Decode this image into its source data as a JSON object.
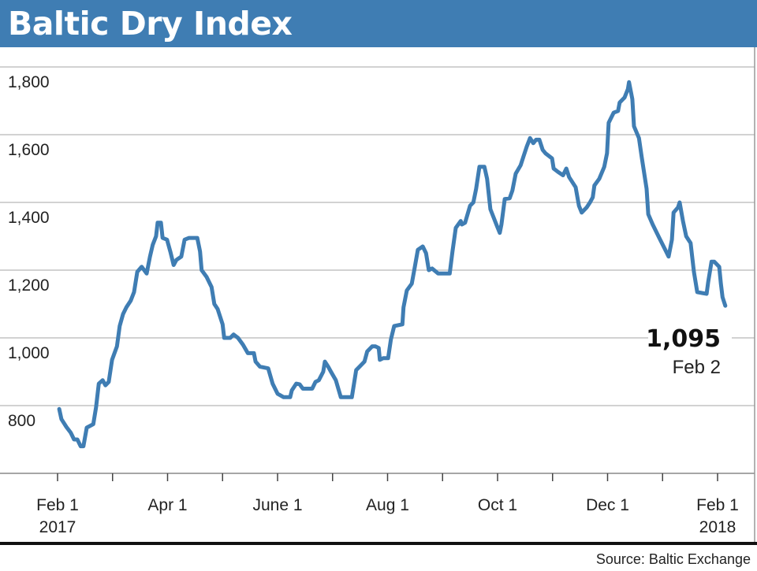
{
  "chart_data": {
    "type": "line",
    "title": "Baltic Dry Index",
    "xlabel": "",
    "ylabel": "",
    "x_unit": "months since Feb 1 2017",
    "ylim": [
      600,
      1800
    ],
    "y_ticks": [
      800,
      1000,
      1200,
      1400,
      1600,
      1800
    ],
    "y_tick_labels": [
      "800",
      "1,000",
      "1,200",
      "1,400",
      "1,600",
      "1,800"
    ],
    "x_ticks": [
      0,
      1,
      2,
      3,
      4,
      5,
      6,
      7,
      8,
      9,
      10,
      11,
      12
    ],
    "x_tick_labels": [
      {
        "at": 0,
        "label": "Feb 1",
        "year": "2017"
      },
      {
        "at": 2,
        "label": "Apr 1",
        "year": ""
      },
      {
        "at": 4,
        "label": "June 1",
        "year": ""
      },
      {
        "at": 6,
        "label": "Aug 1",
        "year": ""
      },
      {
        "at": 8,
        "label": "Oct 1",
        "year": ""
      },
      {
        "at": 10,
        "label": "Dec 1",
        "year": ""
      },
      {
        "at": 12,
        "label": "Feb 1",
        "year": "2018"
      }
    ],
    "grid": true,
    "series": [
      {
        "name": "Baltic Dry Index",
        "color": "#3f7db3",
        "x": [
          0.03,
          0.07,
          0.16,
          0.24,
          0.3,
          0.36,
          0.42,
          0.47,
          0.53,
          0.65,
          0.7,
          0.75,
          0.82,
          0.87,
          0.93,
          0.99,
          1.08,
          1.13,
          1.19,
          1.25,
          1.33,
          1.39,
          1.45,
          1.53,
          1.62,
          1.68,
          1.73,
          1.79,
          1.82,
          1.88,
          1.91,
          1.99,
          2.05,
          2.11,
          2.16,
          2.25,
          2.31,
          2.39,
          2.54,
          2.59,
          2.62,
          2.71,
          2.8,
          2.85,
          2.91,
          3.0,
          3.03,
          3.14,
          3.2,
          3.28,
          3.37,
          3.46,
          3.57,
          3.6,
          3.68,
          3.83,
          3.91,
          4.0,
          4.11,
          4.23,
          4.26,
          4.34,
          4.4,
          4.46,
          4.63,
          4.69,
          4.75,
          4.83,
          4.86,
          4.92,
          4.97,
          5.06,
          5.15,
          5.35,
          5.43,
          5.49,
          5.58,
          5.63,
          5.72,
          5.78,
          5.84,
          5.86,
          5.92,
          6.01,
          6.06,
          6.12,
          6.27,
          6.29,
          6.35,
          6.44,
          6.49,
          6.55,
          6.64,
          6.7,
          6.75,
          6.81,
          6.92,
          7.13,
          7.18,
          7.24,
          7.33,
          7.35,
          7.41,
          7.5,
          7.56,
          7.61,
          7.67,
          7.76,
          7.81,
          7.87,
          7.99,
          8.04,
          8.07,
          8.13,
          8.22,
          8.27,
          8.33,
          8.42,
          8.47,
          8.53,
          8.59,
          8.65,
          8.7,
          8.76,
          8.82,
          8.87,
          8.99,
          9.02,
          9.1,
          9.19,
          9.25,
          9.3,
          9.42,
          9.48,
          9.53,
          9.62,
          9.68,
          9.73,
          9.76,
          9.85,
          9.94,
          9.99,
          10.02,
          10.11,
          10.19,
          10.22,
          10.31,
          10.37,
          10.39,
          10.45,
          10.48,
          10.57,
          10.62,
          10.71,
          10.74,
          10.82,
          10.94,
          11.05,
          11.11,
          11.17,
          11.2,
          11.28,
          11.31,
          11.37,
          11.43,
          11.51,
          11.57,
          11.63,
          11.8,
          11.83,
          11.89,
          11.94,
          12.03,
          12.06,
          12.09,
          12.14
        ],
        "values": [
          790,
          760,
          737,
          720,
          700,
          700,
          680,
          680,
          735,
          745,
          795,
          865,
          875,
          860,
          870,
          935,
          975,
          1035,
          1070,
          1090,
          1110,
          1135,
          1195,
          1210,
          1190,
          1240,
          1275,
          1300,
          1340,
          1340,
          1295,
          1290,
          1255,
          1215,
          1230,
          1240,
          1290,
          1295,
          1295,
          1255,
          1200,
          1180,
          1150,
          1100,
          1085,
          1040,
          1000,
          1000,
          1010,
          1000,
          980,
          955,
          955,
          930,
          915,
          910,
          865,
          835,
          825,
          825,
          845,
          865,
          863,
          850,
          850,
          870,
          875,
          900,
          930,
          915,
          900,
          875,
          825,
          825,
          905,
          915,
          930,
          960,
          975,
          975,
          970,
          935,
          940,
          940,
          995,
          1035,
          1040,
          1090,
          1140,
          1160,
          1205,
          1260,
          1270,
          1250,
          1200,
          1205,
          1190,
          1190,
          1255,
          1325,
          1345,
          1335,
          1340,
          1390,
          1400,
          1440,
          1505,
          1505,
          1470,
          1380,
          1330,
          1310,
          1335,
          1410,
          1412,
          1435,
          1485,
          1510,
          1535,
          1565,
          1590,
          1575,
          1585,
          1585,
          1555,
          1545,
          1530,
          1500,
          1490,
          1480,
          1500,
          1475,
          1445,
          1390,
          1370,
          1385,
          1400,
          1415,
          1450,
          1470,
          1505,
          1545,
          1635,
          1665,
          1670,
          1695,
          1710,
          1735,
          1755,
          1705,
          1625,
          1590,
          1535,
          1440,
          1365,
          1335,
          1295,
          1260,
          1240,
          1290,
          1370,
          1385,
          1400,
          1345,
          1300,
          1280,
          1195,
          1135,
          1130,
          1165,
          1225,
          1225,
          1210,
          1160,
          1120,
          1095
        ]
      }
    ],
    "annotation": {
      "value": "1,095",
      "label": "Feb 2"
    },
    "source": "Source: Baltic Exchange"
  }
}
